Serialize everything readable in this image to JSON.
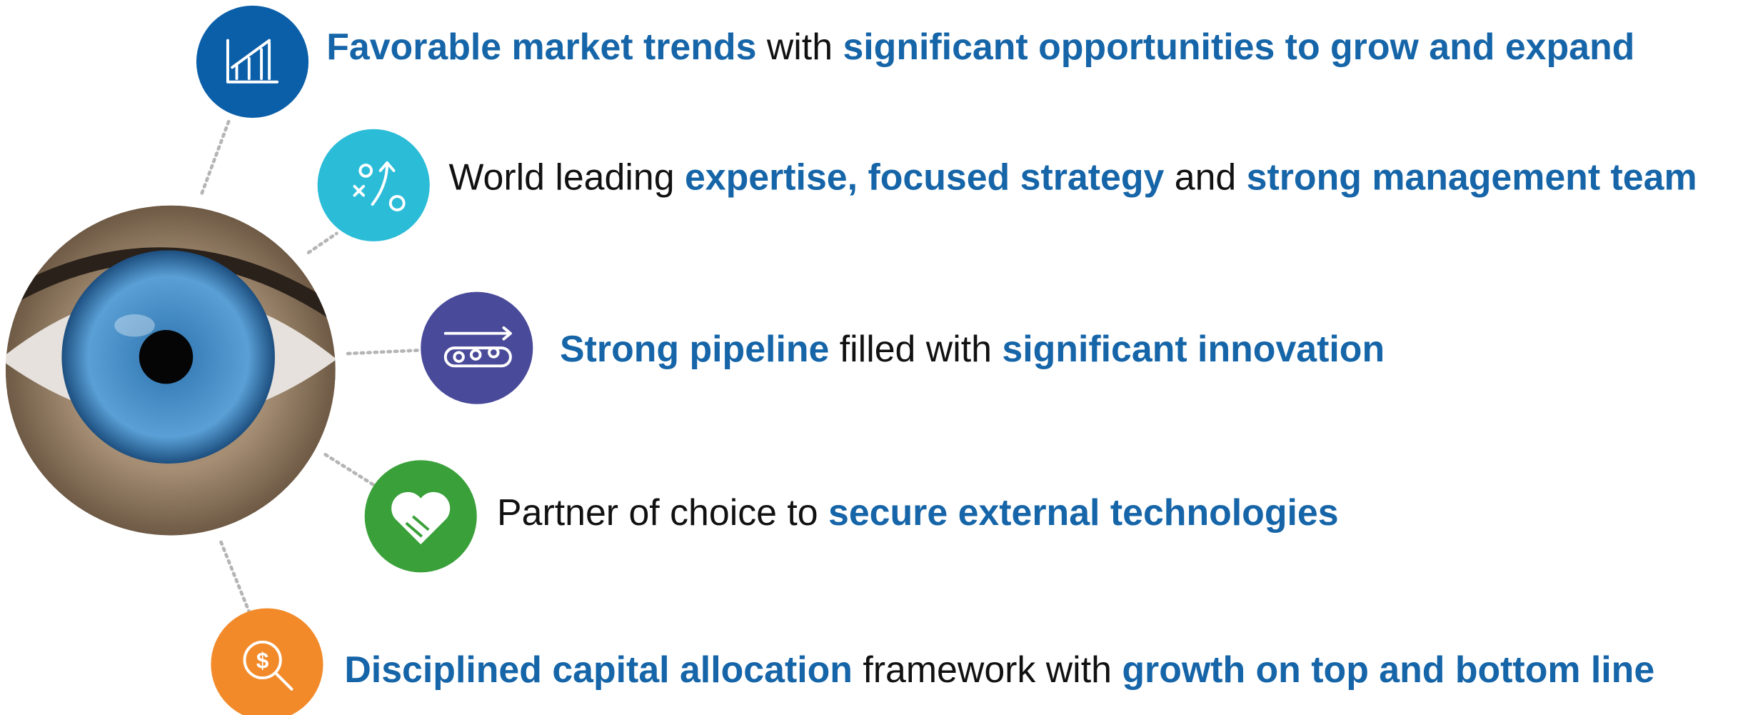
{
  "items": [
    {
      "parts": [
        {
          "text": "Favorable market trends",
          "bold": true
        },
        {
          "text": " with ",
          "bold": false
        },
        {
          "text": "significant opportunities to grow and expand",
          "bold": true
        }
      ]
    },
    {
      "parts": [
        {
          "text": "World leading ",
          "bold": false
        },
        {
          "text": "expertise, focused strategy",
          "bold": true
        },
        {
          "text": " and ",
          "bold": false
        },
        {
          "text": "strong management team",
          "bold": true
        }
      ]
    },
    {
      "parts": [
        {
          "text": "Strong pipeline",
          "bold": true
        },
        {
          "text": " filled with ",
          "bold": false
        },
        {
          "text": "significant innovation",
          "bold": true
        }
      ]
    },
    {
      "parts": [
        {
          "text": "Partner of choice to ",
          "bold": false
        },
        {
          "text": "secure external technologies",
          "bold": true
        }
      ]
    },
    {
      "parts": [
        {
          "text": "Disciplined capital allocation",
          "bold": true
        },
        {
          "text": " framework with ",
          "bold": false
        },
        {
          "text": "growth on top and bottom line",
          "bold": true
        }
      ]
    }
  ]
}
